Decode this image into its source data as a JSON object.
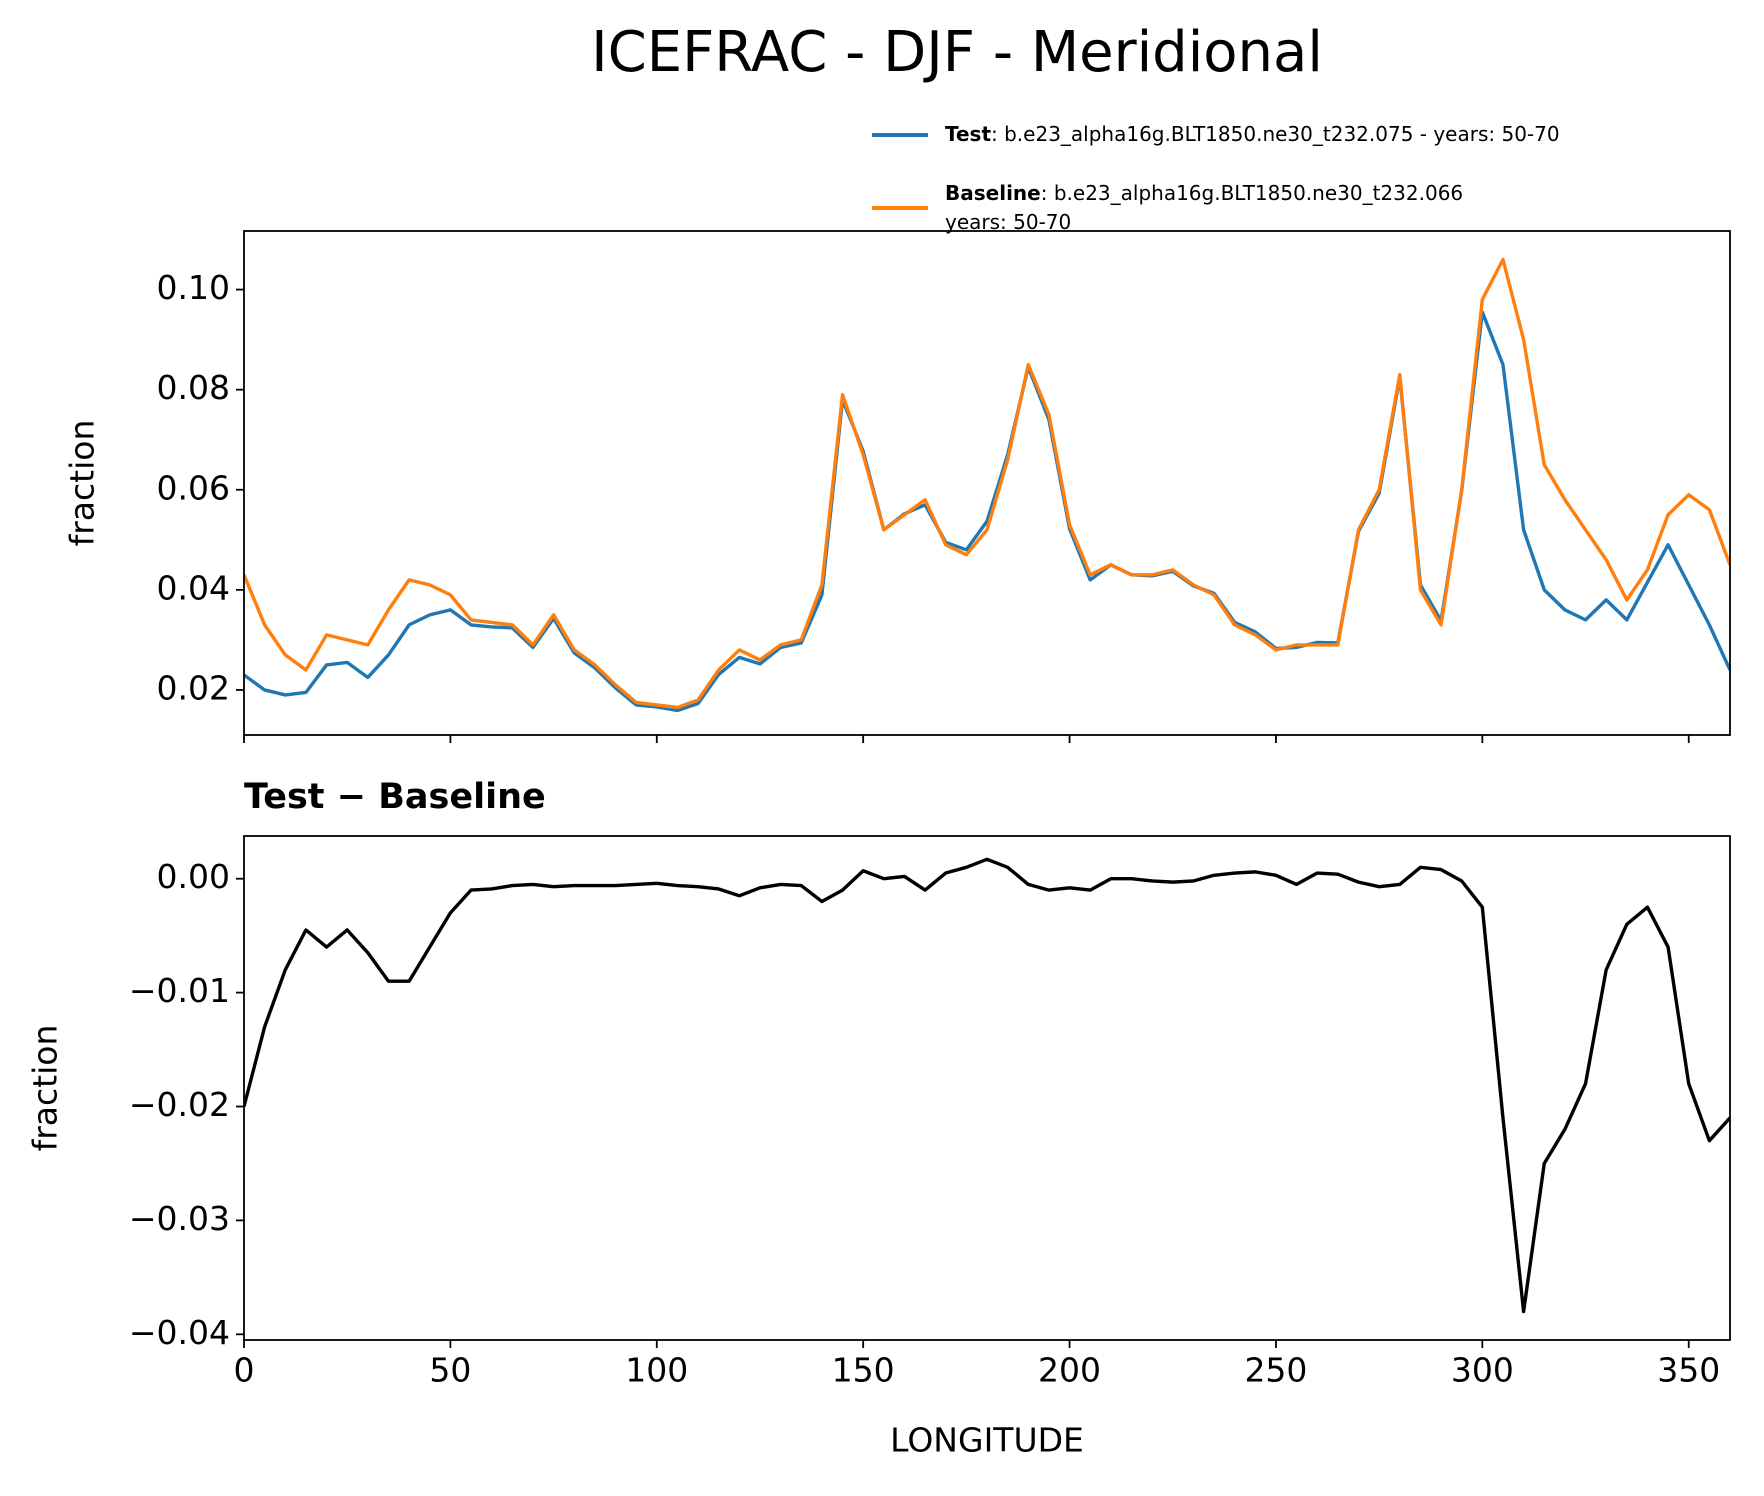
{
  "chart_data": [
    {
      "type": "line",
      "title": "ICEFRAC - DJF - Meridional",
      "ylabel": "fraction",
      "legend": "above",
      "x": [
        0,
        5,
        10,
        15,
        20,
        25,
        30,
        35,
        40,
        45,
        50,
        55,
        60,
        65,
        70,
        75,
        80,
        85,
        90,
        95,
        100,
        105,
        110,
        115,
        120,
        125,
        130,
        135,
        140,
        145,
        150,
        155,
        160,
        165,
        170,
        175,
        180,
        185,
        190,
        195,
        200,
        205,
        210,
        215,
        220,
        225,
        230,
        235,
        240,
        245,
        250,
        255,
        260,
        265,
        270,
        275,
        280,
        285,
        290,
        295,
        300,
        305,
        310,
        315,
        320,
        325,
        330,
        335,
        340,
        345,
        350,
        355,
        360
      ],
      "xlim": [
        0,
        360
      ],
      "xticks": [
        0,
        50,
        100,
        150,
        200,
        250,
        300,
        350
      ],
      "show_xtick_labels": false,
      "ylim": [
        0.011,
        0.1117
      ],
      "yticks": [
        0.02,
        0.04,
        0.06,
        0.08,
        {
          "value": 0.1,
          "label": "0.10"
        }
      ],
      "series": [
        {
          "name": "Test",
          "label_lines": [
            ": b.e23_alpha16g.BLT1850.ne30_t232.075 - years: 50-70"
          ],
          "color": "#1f77b4",
          "values": [
            0.023,
            0.02,
            0.019,
            0.0195,
            0.025,
            0.0255,
            0.0225,
            0.027,
            0.033,
            0.035,
            0.036,
            0.033,
            0.0326,
            0.0324,
            0.0285,
            0.0343,
            0.0274,
            0.0244,
            0.0204,
            0.017,
            0.0166,
            0.0159,
            0.0173,
            0.0231,
            0.0265,
            0.0252,
            0.0285,
            0.0294,
            0.039,
            0.078,
            0.0677,
            0.052,
            0.0552,
            0.057,
            0.0495,
            0.048,
            0.0537,
            0.067,
            0.0845,
            0.074,
            0.0522,
            0.042,
            0.045,
            0.043,
            0.0428,
            0.0437,
            0.0408,
            0.0393,
            0.0335,
            0.0316,
            0.0283,
            0.0285,
            0.0295,
            0.0294,
            0.0517,
            0.0593,
            0.0825,
            0.041,
            0.0338,
            0.0598,
            0.0955,
            0.085,
            0.052,
            0.04,
            0.036,
            0.034,
            0.038,
            0.034,
            0.0415,
            0.049,
            0.041,
            0.033,
            0.024
          ]
        },
        {
          "name": "Baseline",
          "label_lines": [
            ": b.e23_alpha16g.BLT1850.ne30_t232.066",
            "years: 50-70"
          ],
          "color": "#ff7f0e",
          "values": [
            0.043,
            0.033,
            0.027,
            0.024,
            0.031,
            0.03,
            0.029,
            0.036,
            0.042,
            0.041,
            0.039,
            0.034,
            0.0335,
            0.033,
            0.029,
            0.035,
            0.028,
            0.025,
            0.021,
            0.0175,
            0.017,
            0.0165,
            0.018,
            0.024,
            0.028,
            0.026,
            0.029,
            0.03,
            0.041,
            0.079,
            0.067,
            0.052,
            0.055,
            0.058,
            0.049,
            0.047,
            0.052,
            0.066,
            0.085,
            0.075,
            0.053,
            0.043,
            0.045,
            0.043,
            0.043,
            0.044,
            0.041,
            0.039,
            0.033,
            0.031,
            0.028,
            0.029,
            0.029,
            0.029,
            0.052,
            0.06,
            0.083,
            0.04,
            0.033,
            0.06,
            0.098,
            0.106,
            0.09,
            0.065,
            0.058,
            0.052,
            0.046,
            0.038,
            0.044,
            0.055,
            0.059,
            0.056,
            0.045
          ]
        }
      ]
    },
    {
      "type": "line",
      "subtitle": "Test − Baseline",
      "ylabel": "fraction",
      "xlabel": "LONGITUDE",
      "x": [
        0,
        5,
        10,
        15,
        20,
        25,
        30,
        35,
        40,
        45,
        50,
        55,
        60,
        65,
        70,
        75,
        80,
        85,
        90,
        95,
        100,
        105,
        110,
        115,
        120,
        125,
        130,
        135,
        140,
        145,
        150,
        155,
        160,
        165,
        170,
        175,
        180,
        185,
        190,
        195,
        200,
        205,
        210,
        215,
        220,
        225,
        230,
        235,
        240,
        245,
        250,
        255,
        260,
        265,
        270,
        275,
        280,
        285,
        290,
        295,
        300,
        305,
        310,
        315,
        320,
        325,
        330,
        335,
        340,
        345,
        350,
        355,
        360
      ],
      "xlim": [
        0,
        360
      ],
      "xticks": [
        0,
        50,
        100,
        150,
        200,
        250,
        300,
        350
      ],
      "show_xtick_labels": true,
      "ylim": [
        -0.0405,
        0.00375
      ],
      "yticks": [
        {
          "value": -0.04,
          "label": "−0.04"
        },
        {
          "value": -0.03,
          "label": "−0.03"
        },
        {
          "value": -0.02,
          "label": "−0.02"
        },
        {
          "value": -0.01,
          "label": "−0.01"
        },
        {
          "value": 0,
          "label": "0.00"
        }
      ],
      "series": [
        {
          "color": "#000000",
          "values": [
            -0.02,
            -0.013,
            -0.008,
            -0.0045,
            -0.006,
            -0.0045,
            -0.0065,
            -0.009,
            -0.009,
            -0.006,
            -0.003,
            -0.001,
            -0.0009,
            -0.0006,
            -0.0005,
            -0.0007,
            -0.0006,
            -0.0006,
            -0.0006,
            -0.0005,
            -0.0004,
            -0.0006,
            -0.0007,
            -0.0009,
            -0.0015,
            -0.0008,
            -0.0005,
            -0.0006,
            -0.002,
            -0.001,
            0.0007,
            0,
            0.0002,
            -0.001,
            0.0005,
            0.001,
            0.0017,
            0.001,
            -0.0005,
            -0.001,
            -0.0008,
            -0.001,
            0,
            0,
            -0.0002,
            -0.0003,
            -0.0002,
            0.0003,
            0.0005,
            0.0006,
            0.0003,
            -0.0005,
            0.0005,
            0.0004,
            -0.0003,
            -0.0007,
            -0.0005,
            0.001,
            0.0008,
            -0.0002,
            -0.0025,
            -0.021,
            -0.038,
            -0.025,
            -0.022,
            -0.018,
            -0.008,
            -0.004,
            -0.0025,
            -0.006,
            -0.018,
            -0.023,
            -0.021
          ]
        }
      ]
    }
  ]
}
